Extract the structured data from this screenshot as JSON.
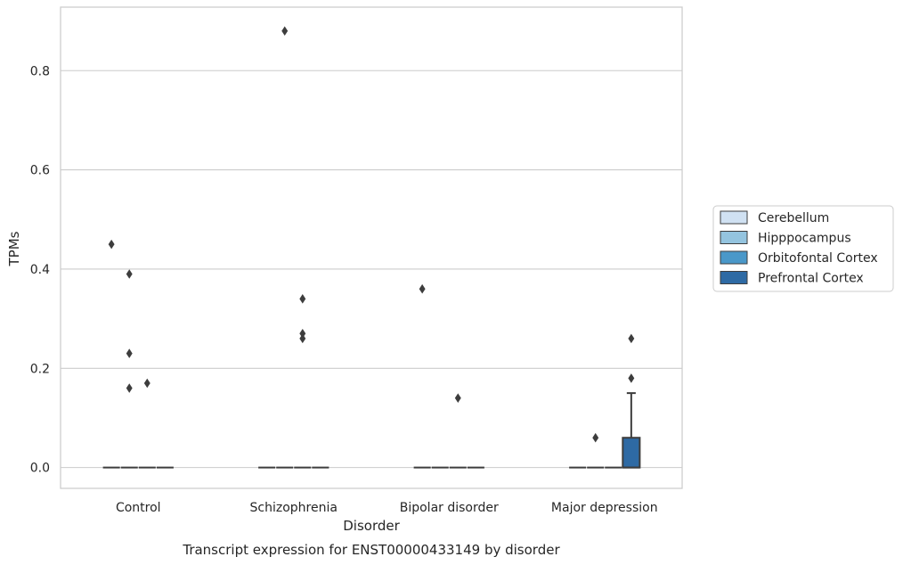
{
  "chart_data": {
    "type": "box",
    "categories": [
      "Control",
      "Schizophrenia",
      "Bipolar disorder",
      "Major depression"
    ],
    "xlabel": "Disorder",
    "ylabel": "TPMs",
    "caption": "Transcript expression for ENST00000433149 by disorder",
    "ylim": [
      -0.042,
      0.928
    ],
    "yticks": [
      0.0,
      0.2,
      0.4,
      0.6,
      0.8
    ],
    "ytick_labels": [
      "0.0",
      "0.2",
      "0.4",
      "0.6",
      "0.8"
    ],
    "grid": true,
    "legend_position": "right",
    "series": [
      {
        "name": "Cerebellum",
        "color": "#d0e1f2",
        "boxes": [
          {
            "min": 0,
            "q1": 0,
            "median": 0,
            "q3": 0,
            "max": 0,
            "outliers": [
              0.45
            ]
          },
          {
            "min": 0,
            "q1": 0,
            "median": 0,
            "q3": 0,
            "max": 0,
            "outliers": []
          },
          {
            "min": 0,
            "q1": 0,
            "median": 0,
            "q3": 0,
            "max": 0,
            "outliers": [
              0.36
            ]
          },
          {
            "min": 0,
            "q1": 0,
            "median": 0,
            "q3": 0,
            "max": 0,
            "outliers": []
          }
        ]
      },
      {
        "name": "Hipppocampus",
        "color": "#94c4df",
        "boxes": [
          {
            "min": 0,
            "q1": 0,
            "median": 0,
            "q3": 0,
            "max": 0,
            "outliers": [
              0.39,
              0.23,
              0.16
            ]
          },
          {
            "min": 0,
            "q1": 0,
            "median": 0,
            "q3": 0,
            "max": 0,
            "outliers": [
              0.88
            ]
          },
          {
            "min": 0,
            "q1": 0,
            "median": 0,
            "q3": 0,
            "max": 0,
            "outliers": []
          },
          {
            "min": 0,
            "q1": 0,
            "median": 0,
            "q3": 0,
            "max": 0,
            "outliers": [
              0.06
            ]
          }
        ]
      },
      {
        "name": "Orbitofontal Cortex",
        "color": "#4a98c9",
        "boxes": [
          {
            "min": 0,
            "q1": 0,
            "median": 0,
            "q3": 0,
            "max": 0,
            "outliers": [
              0.17
            ]
          },
          {
            "min": 0,
            "q1": 0,
            "median": 0,
            "q3": 0,
            "max": 0,
            "outliers": [
              0.34,
              0.27,
              0.26
            ]
          },
          {
            "min": 0,
            "q1": 0,
            "median": 0,
            "q3": 0,
            "max": 0,
            "outliers": [
              0.14
            ]
          },
          {
            "min": 0,
            "q1": 0,
            "median": 0,
            "q3": 0,
            "max": 0,
            "outliers": []
          }
        ]
      },
      {
        "name": "Prefrontal Cortex",
        "color": "#2e6aa4",
        "boxes": [
          {
            "min": 0,
            "q1": 0,
            "median": 0,
            "q3": 0,
            "max": 0,
            "outliers": []
          },
          {
            "min": 0,
            "q1": 0,
            "median": 0,
            "q3": 0,
            "max": 0,
            "outliers": []
          },
          {
            "min": 0,
            "q1": 0,
            "median": 0,
            "q3": 0,
            "max": 0,
            "outliers": []
          },
          {
            "min": 0,
            "q1": 0,
            "median": 0,
            "q3": 0.06,
            "max": 0.15,
            "outliers": [
              0.26,
              0.18
            ]
          }
        ]
      }
    ]
  }
}
